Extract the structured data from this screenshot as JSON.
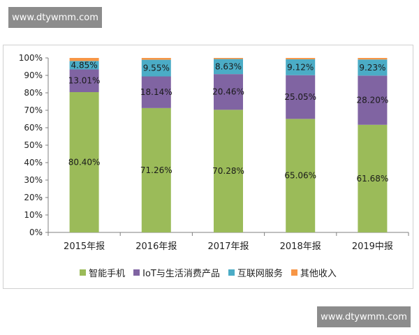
{
  "watermark": {
    "top_text": "www.dtywmm.com",
    "bottom_text": "www.dtywmm.com"
  },
  "chart_data": {
    "type": "bar",
    "stacked": true,
    "categories": [
      "2015年报",
      "2016年报",
      "2017年报",
      "2018年报",
      "2019中报"
    ],
    "y_ticks": [
      "0%",
      "10%",
      "20%",
      "30%",
      "40%",
      "50%",
      "60%",
      "70%",
      "80%",
      "90%",
      "100%"
    ],
    "ylim": [
      0,
      100
    ],
    "grid": false,
    "legend_position": "bottom",
    "series": [
      {
        "name": "智能手机",
        "color": "#9bbb59",
        "values": [
          80.4,
          71.26,
          70.28,
          65.06,
          61.68
        ],
        "labels": [
          "80.40%",
          "71.26%",
          "70.28%",
          "65.06%",
          "61.68%"
        ]
      },
      {
        "name": "IoT与生活消费产品",
        "color": "#8064a2",
        "values": [
          13.01,
          18.14,
          20.46,
          25.05,
          28.2
        ],
        "labels": [
          "13.01%",
          "18.14%",
          "20.46%",
          "25.05%",
          "28.20%"
        ]
      },
      {
        "name": "互联网服务",
        "color": "#4bacc6",
        "values": [
          4.85,
          9.55,
          8.63,
          9.12,
          9.23
        ],
        "labels": [
          "4.85%",
          "9.55%",
          "8.63%",
          "9.12%",
          "9.23%"
        ]
      },
      {
        "name": "其他收入",
        "color": "#f79646",
        "values": [
          1.74,
          1.05,
          0.63,
          0.77,
          0.89
        ],
        "labels": [
          "",
          "",
          "",
          "",
          ""
        ]
      }
    ]
  }
}
